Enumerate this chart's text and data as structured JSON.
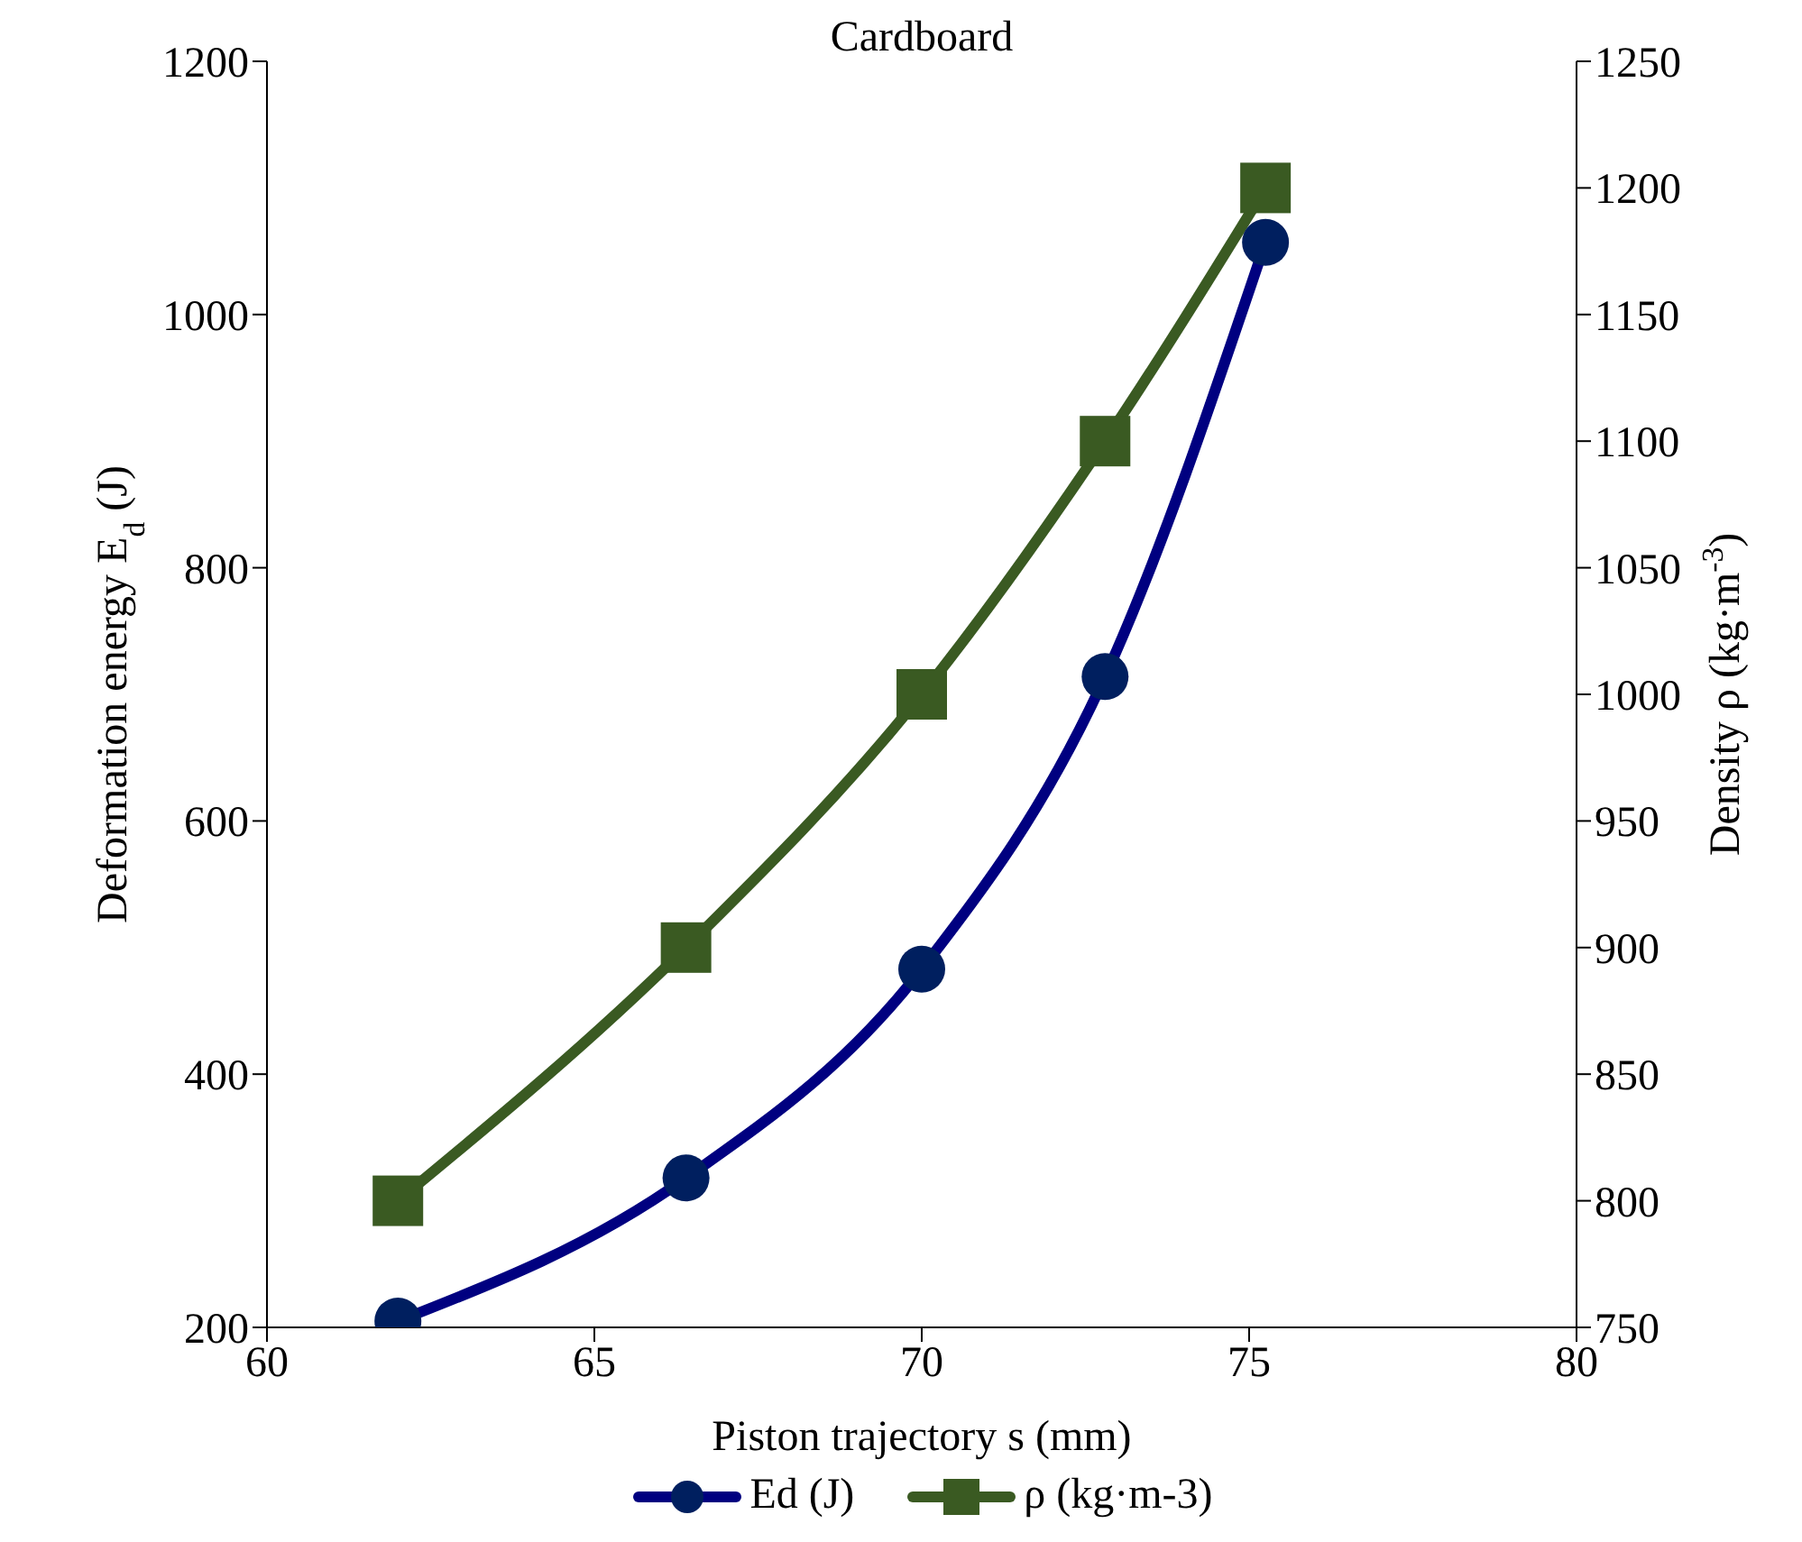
{
  "chart_data": {
    "type": "line",
    "title": "Cardboard",
    "xlabel": "Piston trajectory s (mm)",
    "ylabel": "Deformation energy E$_{d}$ (J)",
    "y2label": "Density ρ (kg·m$^{-3}$)",
    "x": [
      62.0,
      66.4,
      70.0,
      72.8,
      75.25
    ],
    "series": [
      {
        "name": "Ed (J)",
        "color": "#000080",
        "marker": "circle",
        "values": [
          205,
          318,
          483,
          714,
          1057
        ]
      },
      {
        "name": "ρ  (kg·m-3)",
        "color": "#3a5a22",
        "marker": "square",
        "axis": "y2",
        "values": [
          800,
          900,
          1000,
          1100,
          1200
        ]
      }
    ],
    "xlim": [
      60,
      80
    ],
    "xticks": [
      60,
      65,
      70,
      75,
      80
    ],
    "ylim": [
      200,
      1200
    ],
    "yticks": [
      200,
      400,
      600,
      800,
      1000,
      1200
    ],
    "y2lim": [
      750,
      1250
    ],
    "y2ticks": [
      750,
      800,
      850,
      900,
      950,
      1000,
      1050,
      1100,
      1150,
      1200,
      1250
    ],
    "grid": false,
    "legend": "bottom",
    "line_style": "solid"
  }
}
